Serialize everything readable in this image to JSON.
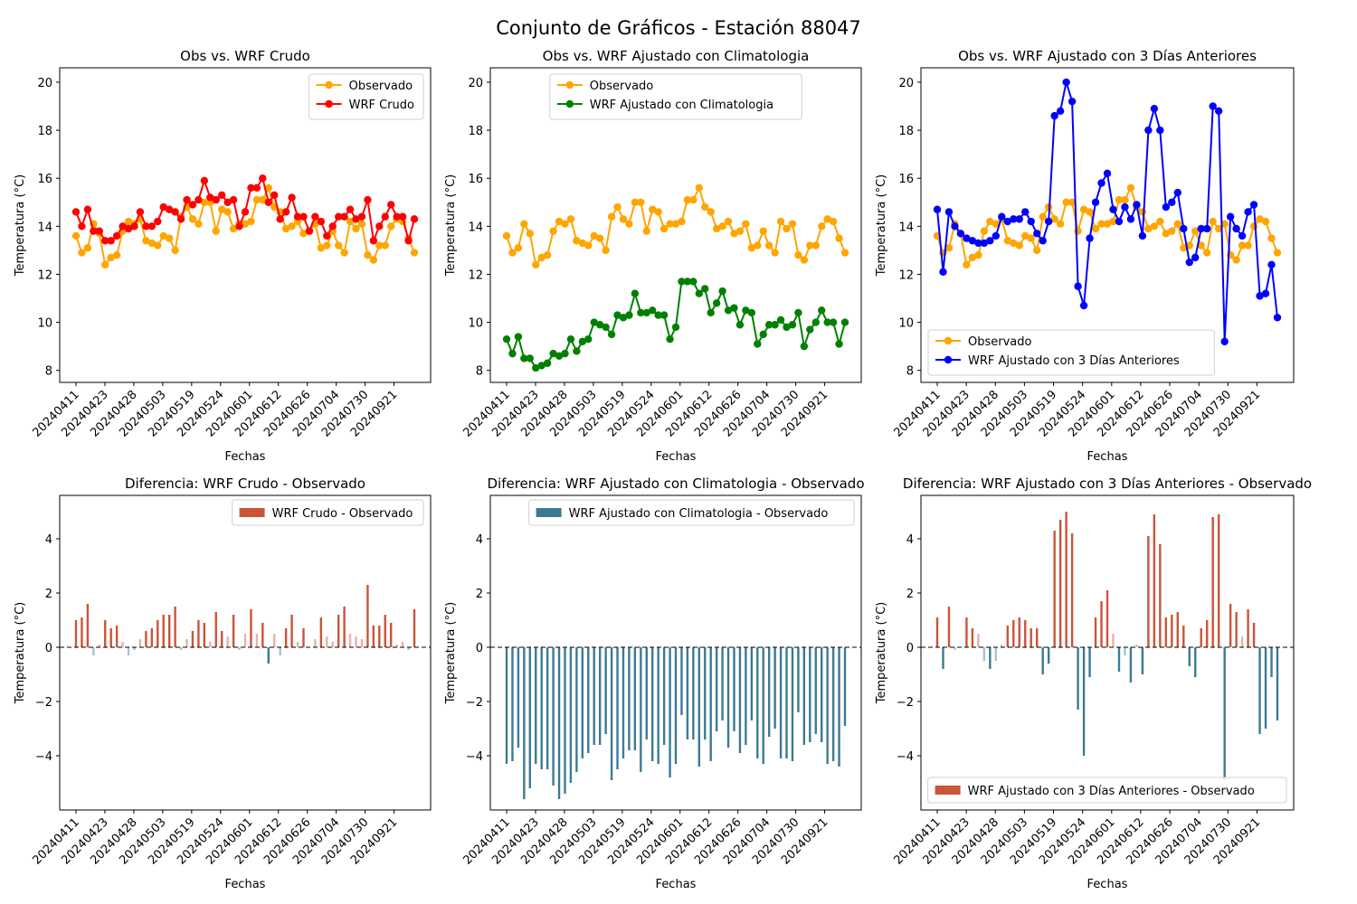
{
  "suptitle": "Conjunto de Gráficos - Estación 88047",
  "x_ticks": [
    "20240411",
    "20240423",
    "20240428",
    "20240503",
    "20240519",
    "20240524",
    "20240601",
    "20240612",
    "20240626",
    "20240704",
    "20240730",
    "20240921"
  ],
  "colors": {
    "observed": "#FFA500",
    "raw": "#FF0000",
    "clim": "#008000",
    "prev3": "#0000FF",
    "diff_pos": "#C9553A",
    "diff_neg": "#3C7A93"
  },
  "chart_data": [
    {
      "type": "line",
      "title": "Obs vs. WRF Crudo",
      "xlabel": "Fechas",
      "ylabel": "Temperatura (°C)",
      "ylim": [
        7.5,
        20.6
      ],
      "yticks": [
        8,
        10,
        12,
        14,
        16,
        18,
        20
      ],
      "legend_position": "upper right",
      "series": [
        {
          "name": "Observado",
          "color_key": "observed",
          "values": [
            13.6,
            12.9,
            13.1,
            14.1,
            13.7,
            12.4,
            12.7,
            12.8,
            13.8,
            14.2,
            14.1,
            14.3,
            13.4,
            13.3,
            13.2,
            13.6,
            13.5,
            13.0,
            14.4,
            14.8,
            14.3,
            14.1,
            15.0,
            15.0,
            13.8,
            14.7,
            14.6,
            13.9,
            14.1,
            14.1,
            14.2,
            15.1,
            15.1,
            15.6,
            14.8,
            14.6,
            13.9,
            14.0,
            14.2,
            13.7,
            13.8,
            14.1,
            13.1,
            13.2,
            13.8,
            13.2,
            12.9,
            14.2,
            13.9,
            14.1,
            12.8,
            12.6,
            13.2,
            13.2,
            14.0,
            14.3,
            14.2,
            13.5,
            12.9
          ]
        },
        {
          "name": "WRF Crudo",
          "color_key": "raw",
          "values": [
            14.6,
            14.0,
            14.7,
            13.8,
            13.8,
            13.4,
            13.4,
            13.6,
            14.0,
            13.9,
            14.0,
            14.6,
            14.0,
            14.0,
            14.2,
            14.8,
            14.7,
            14.6,
            14.3,
            15.1,
            14.9,
            15.1,
            15.9,
            15.2,
            15.1,
            15.3,
            15.0,
            15.1,
            14.0,
            14.6,
            15.6,
            15.6,
            16.0,
            15.0,
            15.3,
            14.3,
            14.6,
            15.2,
            14.4,
            14.4,
            13.8,
            14.4,
            14.2,
            13.6,
            14.0,
            14.4,
            14.4,
            14.7,
            14.3,
            14.4,
            15.1,
            13.4,
            14.0,
            14.4,
            14.9,
            14.4,
            14.4,
            13.4,
            14.3
          ]
        }
      ]
    },
    {
      "type": "line",
      "title": "Obs vs. WRF Ajustado con Climatologia",
      "xlabel": "Fechas",
      "ylabel": "Temperatura (°C)",
      "ylim": [
        7.5,
        20.6
      ],
      "yticks": [
        8,
        10,
        12,
        14,
        16,
        18,
        20
      ],
      "legend_position": "upper center",
      "series": [
        {
          "name": "Observado",
          "color_key": "observed",
          "values": [
            13.6,
            12.9,
            13.1,
            14.1,
            13.7,
            12.4,
            12.7,
            12.8,
            13.8,
            14.2,
            14.1,
            14.3,
            13.4,
            13.3,
            13.2,
            13.6,
            13.5,
            13.0,
            14.4,
            14.8,
            14.3,
            14.1,
            15.0,
            15.0,
            13.8,
            14.7,
            14.6,
            13.9,
            14.1,
            14.1,
            14.2,
            15.1,
            15.1,
            15.6,
            14.8,
            14.6,
            13.9,
            14.0,
            14.2,
            13.7,
            13.8,
            14.1,
            13.1,
            13.2,
            13.8,
            13.2,
            12.9,
            14.2,
            13.9,
            14.1,
            12.8,
            12.6,
            13.2,
            13.2,
            14.0,
            14.3,
            14.2,
            13.5,
            12.9
          ]
        },
        {
          "name": "WRF Ajustado con Climatologia",
          "color_key": "clim",
          "values": [
            9.3,
            8.7,
            9.4,
            8.5,
            8.5,
            8.1,
            8.2,
            8.3,
            8.7,
            8.6,
            8.7,
            9.3,
            8.8,
            9.2,
            9.3,
            10.0,
            9.9,
            9.8,
            9.5,
            10.3,
            10.2,
            10.3,
            11.2,
            10.4,
            10.4,
            10.5,
            10.3,
            10.3,
            9.3,
            9.8,
            11.7,
            11.7,
            11.7,
            11.2,
            11.4,
            10.4,
            10.8,
            11.3,
            10.5,
            10.6,
            9.9,
            10.5,
            10.4,
            9.1,
            9.5,
            9.9,
            9.9,
            10.1,
            9.8,
            9.9,
            10.4,
            9.0,
            9.7,
            10.0,
            10.5,
            10.0,
            10.0,
            9.1,
            10.0
          ]
        }
      ]
    },
    {
      "type": "line",
      "title": "Obs vs. WRF Ajustado con 3 Días Anteriores",
      "xlabel": "Fechas",
      "ylabel": "Temperatura (°C)",
      "ylim": [
        7.5,
        20.6
      ],
      "yticks": [
        8,
        10,
        12,
        14,
        16,
        18,
        20
      ],
      "legend_position": "lower left",
      "series": [
        {
          "name": "Observado",
          "color_key": "observed",
          "values": [
            13.6,
            12.9,
            13.1,
            14.1,
            13.7,
            12.4,
            12.7,
            12.8,
            13.8,
            14.2,
            14.1,
            14.3,
            13.4,
            13.3,
            13.2,
            13.6,
            13.5,
            13.0,
            14.4,
            14.8,
            14.3,
            14.1,
            15.0,
            15.0,
            13.8,
            14.7,
            14.6,
            13.9,
            14.1,
            14.1,
            14.2,
            15.1,
            15.1,
            15.6,
            14.8,
            14.6,
            13.9,
            14.0,
            14.2,
            13.7,
            13.8,
            14.1,
            13.1,
            13.2,
            13.8,
            13.2,
            12.9,
            14.2,
            13.9,
            14.1,
            12.8,
            12.6,
            13.2,
            13.2,
            14.0,
            14.3,
            14.2,
            13.5,
            12.9
          ]
        },
        {
          "name": "WRF Ajustado con 3 Días Anteriores",
          "color_key": "prev3",
          "values": [
            14.7,
            12.1,
            14.6,
            14.0,
            13.7,
            13.5,
            13.4,
            13.3,
            13.3,
            13.4,
            13.6,
            14.4,
            14.2,
            14.3,
            14.3,
            14.6,
            14.2,
            13.7,
            13.4,
            14.2,
            18.6,
            18.8,
            20.0,
            19.2,
            11.5,
            10.7,
            13.5,
            15.0,
            15.8,
            16.2,
            14.7,
            14.2,
            14.8,
            14.3,
            14.9,
            13.6,
            18.0,
            18.9,
            18.0,
            14.8,
            15.0,
            15.4,
            13.9,
            12.5,
            12.7,
            13.9,
            13.9,
            19.0,
            18.8,
            9.2,
            14.4,
            13.9,
            13.6,
            14.6,
            14.9,
            11.1,
            11.2,
            12.4,
            10.2
          ]
        }
      ]
    },
    {
      "type": "bar",
      "title": "Diferencia: WRF Crudo - Observado",
      "xlabel": "Fechas",
      "ylabel": "Temperatura (°C)",
      "ylim": [
        -6.0,
        5.6
      ],
      "yticks": [
        -4,
        -2,
        0,
        2,
        4
      ],
      "legend_position": "upper right",
      "series": [
        {
          "name": "WRF Crudo - Observado",
          "values": [
            1.0,
            1.1,
            1.6,
            -0.3,
            0.1,
            1.0,
            0.7,
            0.8,
            0.2,
            -0.3,
            -0.1,
            0.3,
            0.6,
            0.7,
            1.0,
            1.2,
            1.2,
            1.5,
            -0.1,
            0.3,
            0.6,
            1.0,
            0.9,
            0.2,
            1.3,
            0.6,
            0.4,
            1.2,
            -0.1,
            0.5,
            1.4,
            0.5,
            0.9,
            -0.6,
            0.5,
            -0.3,
            0.7,
            1.2,
            0.2,
            0.7,
            0.0,
            0.3,
            1.1,
            0.4,
            0.2,
            1.2,
            1.5,
            0.5,
            0.4,
            0.3,
            2.3,
            0.8,
            0.8,
            1.2,
            0.9,
            0.1,
            0.2,
            -0.1,
            1.4
          ]
        }
      ]
    },
    {
      "type": "bar",
      "title": "Diferencia: WRF Ajustado con Climatologia - Observado",
      "xlabel": "Fechas",
      "ylabel": "Temperatura (°C)",
      "ylim": [
        -6.0,
        5.6
      ],
      "yticks": [
        -4,
        -2,
        0,
        2,
        4
      ],
      "legend_position": "upper right",
      "series": [
        {
          "name": "WRF Ajustado con Climatologia - Observado",
          "values": [
            -4.3,
            -4.2,
            -3.7,
            -5.6,
            -5.2,
            -4.3,
            -4.5,
            -4.5,
            -5.1,
            -5.6,
            -5.4,
            -5.0,
            -4.6,
            -4.1,
            -3.9,
            -3.6,
            -3.6,
            -3.2,
            -4.9,
            -4.5,
            -4.1,
            -3.8,
            -3.8,
            -4.6,
            -3.4,
            -4.2,
            -4.3,
            -3.6,
            -4.8,
            -4.3,
            -2.5,
            -3.4,
            -3.4,
            -4.4,
            -3.4,
            -4.2,
            -3.1,
            -2.7,
            -3.7,
            -3.1,
            -3.9,
            -3.6,
            -2.7,
            -4.1,
            -4.3,
            -3.3,
            -3.0,
            -4.1,
            -4.1,
            -4.2,
            -2.4,
            -3.6,
            -3.5,
            -3.2,
            -3.5,
            -4.3,
            -4.2,
            -4.4,
            -2.9
          ]
        }
      ]
    },
    {
      "type": "bar",
      "title": "Diferencia: WRF Ajustado con 3 Días Anteriores - Observado",
      "xlabel": "Fechas",
      "ylabel": "Temperatura (°C)",
      "ylim": [
        -6.0,
        5.6
      ],
      "yticks": [
        -4,
        -2,
        0,
        2,
        4
      ],
      "legend_position": "lower right",
      "series": [
        {
          "name": "WRF Ajustado con 3 Días Anteriores - Observado",
          "values": [
            1.1,
            -0.8,
            1.5,
            -0.1,
            0.0,
            1.1,
            0.7,
            0.5,
            -0.5,
            -0.8,
            -0.5,
            0.1,
            0.8,
            1.0,
            1.1,
            1.0,
            0.7,
            0.7,
            -1.0,
            -0.6,
            4.3,
            4.7,
            5.0,
            4.2,
            -2.3,
            -4.0,
            -1.1,
            1.1,
            1.7,
            2.1,
            0.5,
            -0.9,
            -0.3,
            -1.3,
            0.1,
            -1.0,
            4.1,
            4.9,
            3.8,
            1.1,
            1.2,
            1.3,
            0.8,
            -0.7,
            -1.1,
            0.7,
            1.0,
            4.8,
            4.9,
            -4.9,
            1.6,
            1.3,
            0.4,
            1.4,
            0.9,
            -3.2,
            -3.0,
            -1.1,
            -2.7
          ]
        }
      ]
    }
  ]
}
